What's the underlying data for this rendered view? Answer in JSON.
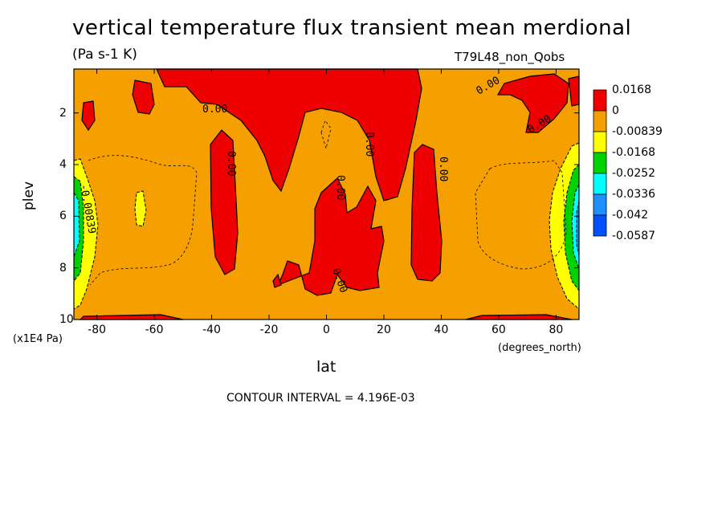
{
  "chart_data": {
    "type": "heatmap",
    "title": "vertical temperature flux transient mean merdional",
    "subtitle": "(Pa s-1 K)",
    "run_name": "T79L48_non_Qobs",
    "xlabel": "lat",
    "x_units": "(degrees_north)",
    "ylabel": "plev",
    "y_units": "(x1E4 Pa)",
    "xlim": [
      -88,
      88
    ],
    "ylim": [
      10,
      0.3
    ],
    "x_ticks": [
      "-80",
      "-60",
      "-40",
      "-20",
      "0",
      "20",
      "40",
      "60",
      "80"
    ],
    "x_tick_values": [
      -80,
      -60,
      -40,
      -20,
      0,
      20,
      40,
      60,
      80
    ],
    "y_ticks": [
      "2",
      "4",
      "6",
      "8",
      "10"
    ],
    "y_tick_values": [
      2,
      4,
      6,
      8,
      10
    ],
    "contour_interval": "CONTOUR INTERVAL = 4.196E-03",
    "contour_labels": [
      "0.00",
      "0.00",
      "0.00",
      "0.00",
      "0.00",
      "0.00",
      "0.00",
      "0.00",
      "0.00",
      "-0.00839"
    ],
    "colorbar": {
      "labels": [
        "0.0168",
        "0",
        "-0.00839",
        "-0.0168",
        "-0.0252",
        "-0.0336",
        "-0.042",
        "-0.0587"
      ],
      "colors": [
        "#ee0000",
        "#f5a000",
        "#ffff00",
        "#00d200",
        "#00ffff",
        "#1e90ff",
        "#0050ff"
      ]
    },
    "colors": {
      "positive": "#ee0000",
      "near_zero": "#f5a000",
      "negative_1": "#ffff00",
      "negative_2": "#00d200",
      "negative_3": "#00ffff",
      "negative_4": "#1e90ff",
      "negative_5": "#0050ff"
    }
  }
}
